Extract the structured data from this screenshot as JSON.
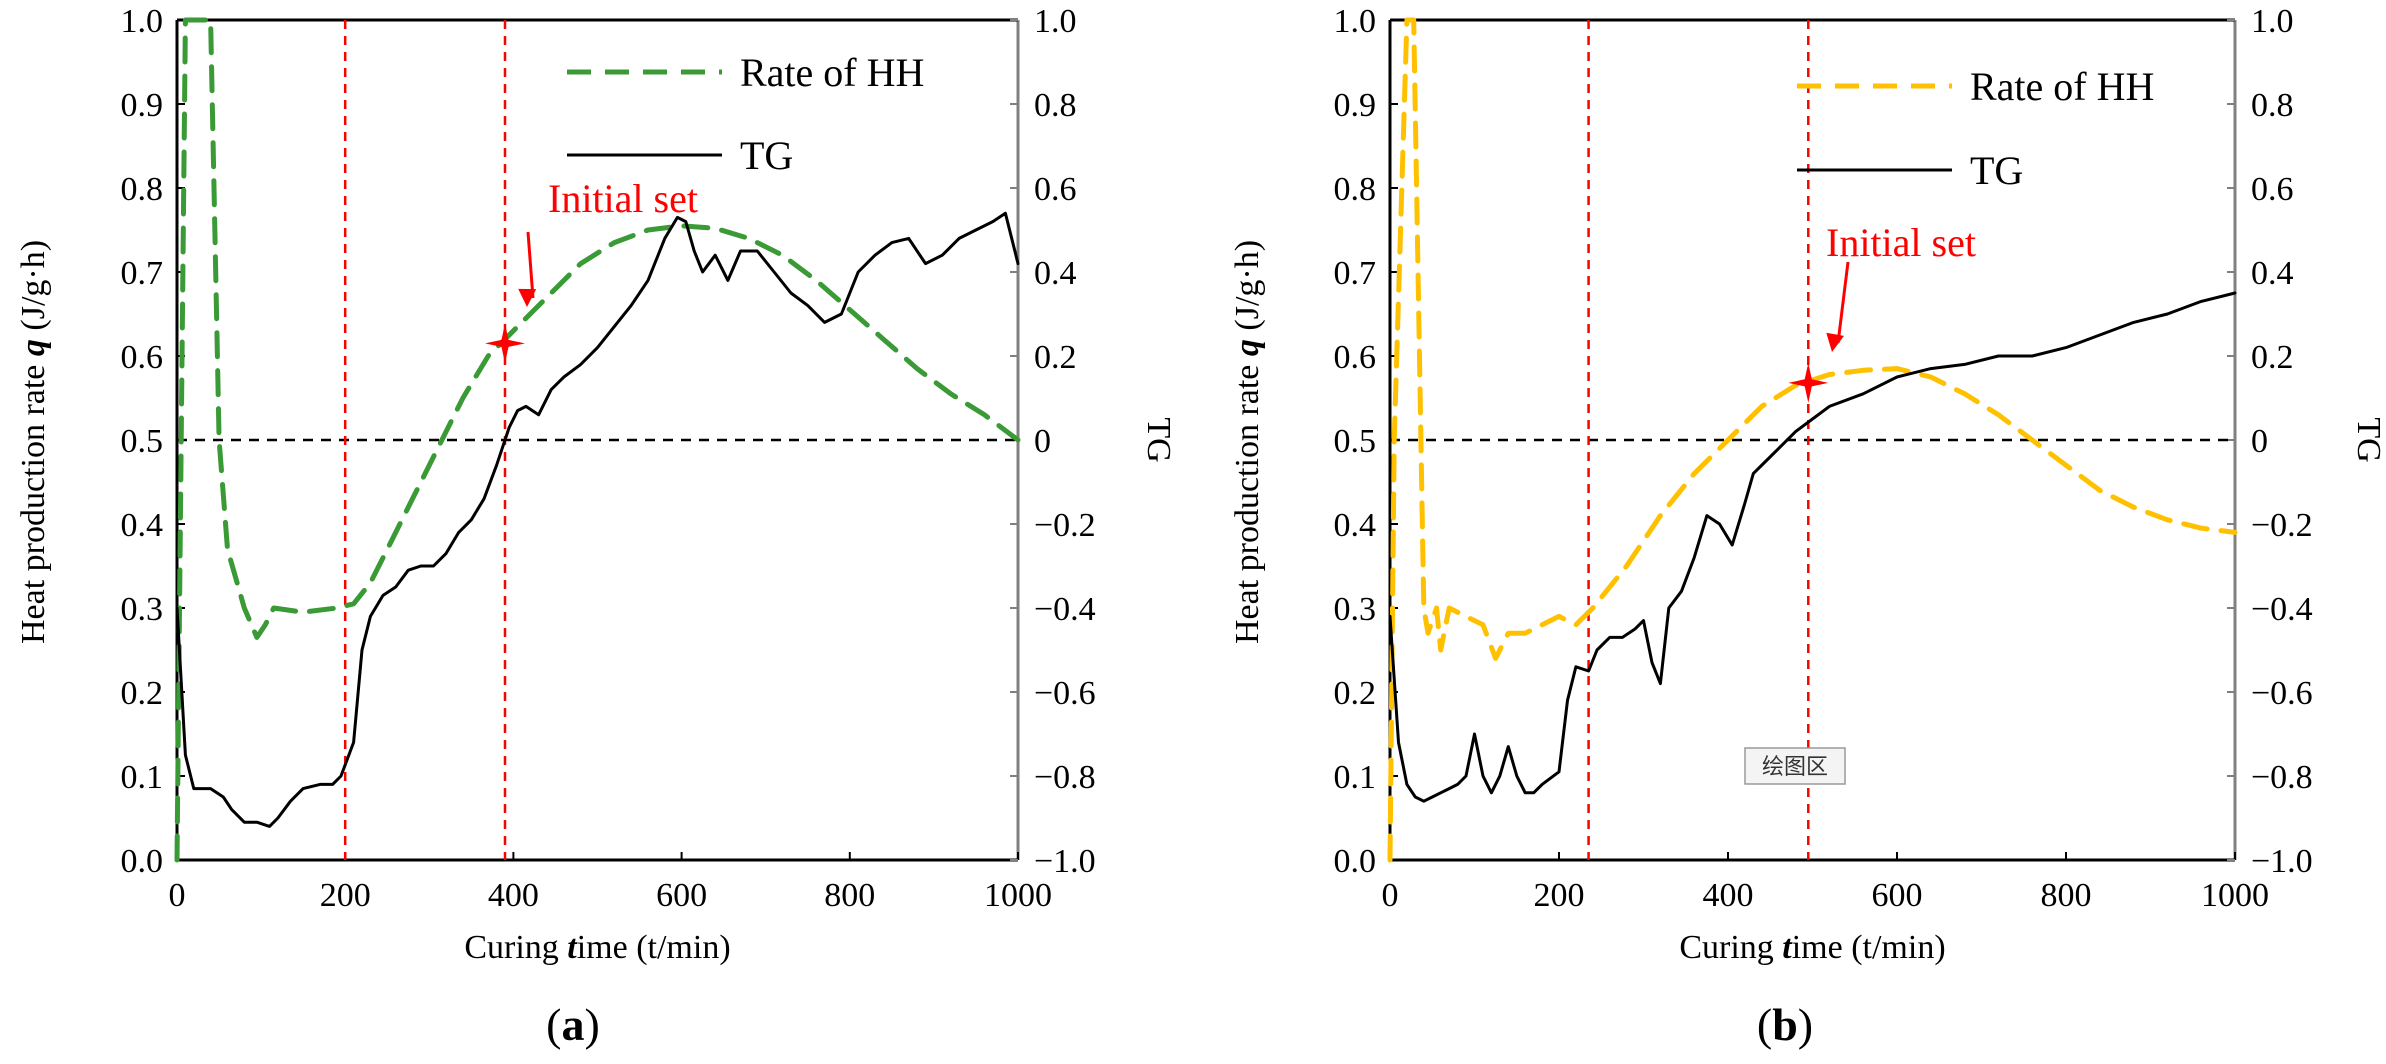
{
  "chart_data": [
    {
      "panel": "a",
      "type": "line",
      "xlabel": "Curing time (t/min)",
      "ylabel_left": "Heat production rate q (J/g·h)",
      "ylabel_right": "TG",
      "xlim": [
        0,
        1000
      ],
      "ylim_left": [
        0.0,
        1.0
      ],
      "ylim_right": [
        -1.0,
        1.0
      ],
      "x_ticks": [
        "0",
        "200",
        "400",
        "600",
        "800",
        "1000"
      ],
      "y_left_ticks": [
        "0.0",
        "0.1",
        "0.2",
        "0.3",
        "0.4",
        "0.5",
        "0.6",
        "0.7",
        "0.8",
        "0.9",
        "1.0"
      ],
      "y_right_ticks": [
        "−1.0",
        "−0.8",
        "−0.6",
        "−0.4",
        "−0.2",
        "0",
        "0.2",
        "0.4",
        "0.6",
        "0.8",
        "1.0"
      ],
      "grid": false,
      "legend_position": "top-right",
      "zero_line_right": 0,
      "vlines": [
        200,
        390
      ],
      "series": [
        {
          "name": "Rate of HH",
          "axis": "left",
          "style": "dashed",
          "color": "#3a9a35",
          "x": [
            0,
            5,
            10,
            40,
            50,
            60,
            80,
            95,
            105,
            115,
            150,
            190,
            210,
            230,
            250,
            280,
            300,
            340,
            370,
            400,
            440,
            480,
            520,
            560,
            600,
            640,
            680,
            720,
            760,
            800,
            840,
            880,
            920,
            960,
            1000
          ],
          "y": [
            0.0,
            0.5,
            1.0,
            1.0,
            0.5,
            0.37,
            0.3,
            0.265,
            0.28,
            0.3,
            0.295,
            0.3,
            0.305,
            0.33,
            0.37,
            0.43,
            0.47,
            0.55,
            0.6,
            0.63,
            0.67,
            0.71,
            0.735,
            0.75,
            0.755,
            0.752,
            0.74,
            0.72,
            0.69,
            0.655,
            0.62,
            0.585,
            0.555,
            0.53,
            0.5
          ]
        },
        {
          "name": "TG",
          "axis": "right",
          "style": "solid",
          "color": "#000000",
          "x": [
            0,
            10,
            20,
            40,
            55,
            65,
            80,
            95,
            110,
            120,
            135,
            150,
            170,
            185,
            195,
            210,
            220,
            230,
            245,
            260,
            275,
            290,
            305,
            320,
            335,
            350,
            365,
            380,
            395,
            405,
            415,
            430,
            445,
            460,
            480,
            500,
            520,
            540,
            560,
            580,
            595,
            605,
            615,
            625,
            640,
            655,
            670,
            690,
            710,
            730,
            750,
            770,
            790,
            810,
            830,
            850,
            870,
            890,
            910,
            930,
            950,
            970,
            985,
            1000
          ],
          "y": [
            -0.4,
            -0.75,
            -0.83,
            -0.83,
            -0.85,
            -0.88,
            -0.91,
            -0.91,
            -0.92,
            -0.9,
            -0.86,
            -0.83,
            -0.82,
            -0.82,
            -0.8,
            -0.72,
            -0.5,
            -0.42,
            -0.37,
            -0.35,
            -0.31,
            -0.3,
            -0.3,
            -0.27,
            -0.22,
            -0.19,
            -0.14,
            -0.06,
            0.03,
            0.07,
            0.08,
            0.06,
            0.12,
            0.15,
            0.18,
            0.22,
            0.27,
            0.32,
            0.38,
            0.48,
            0.53,
            0.52,
            0.45,
            0.4,
            0.44,
            0.38,
            0.45,
            0.45,
            0.4,
            0.35,
            0.32,
            0.28,
            0.3,
            0.4,
            0.44,
            0.47,
            0.48,
            0.42,
            0.44,
            0.48,
            0.5,
            0.52,
            0.54,
            0.42
          ]
        }
      ],
      "annotation": {
        "text": "Initial set",
        "marker_x": 390,
        "marker_y_left": 0.615,
        "color": "#ff0000"
      },
      "panel_label": "(a)"
    },
    {
      "panel": "b",
      "type": "line",
      "xlabel": "Curing time (t/min)",
      "ylabel_left": "Heat production rate q (J/g·h)",
      "ylabel_right": "TG",
      "xlim": [
        0,
        1000
      ],
      "ylim_left": [
        0.0,
        1.0
      ],
      "ylim_right": [
        -1.0,
        1.0
      ],
      "x_ticks": [
        "0",
        "200",
        "400",
        "600",
        "800",
        "1000"
      ],
      "y_left_ticks": [
        "0.0",
        "0.1",
        "0.2",
        "0.3",
        "0.4",
        "0.5",
        "0.6",
        "0.7",
        "0.8",
        "0.9",
        "1.0"
      ],
      "y_right_ticks": [
        "−1.0",
        "−0.8",
        "−0.6",
        "−0.4",
        "−0.2",
        "0",
        "0.2",
        "0.4",
        "0.6",
        "0.8",
        "1.0"
      ],
      "grid": false,
      "legend_position": "top-right",
      "zero_line_right": 0,
      "vlines": [
        235,
        495
      ],
      "series": [
        {
          "name": "Rate of HH",
          "axis": "left",
          "style": "dashed",
          "color": "#ffc000",
          "x": [
            0,
            5,
            20,
            28,
            40,
            45,
            55,
            60,
            70,
            90,
            110,
            125,
            140,
            160,
            180,
            200,
            220,
            240,
            280,
            320,
            360,
            400,
            440,
            480,
            520,
            560,
            600,
            640,
            680,
            720,
            760,
            800,
            840,
            880,
            920,
            960,
            1000
          ],
          "y": [
            0.0,
            0.5,
            1.0,
            1.0,
            0.3,
            0.27,
            0.3,
            0.25,
            0.3,
            0.29,
            0.28,
            0.24,
            0.27,
            0.27,
            0.28,
            0.29,
            0.28,
            0.3,
            0.35,
            0.41,
            0.46,
            0.5,
            0.54,
            0.565,
            0.578,
            0.583,
            0.585,
            0.575,
            0.555,
            0.53,
            0.5,
            0.47,
            0.44,
            0.42,
            0.405,
            0.395,
            0.39
          ]
        },
        {
          "name": "TG",
          "axis": "right",
          "style": "solid",
          "color": "#000000",
          "x": [
            0,
            10,
            20,
            30,
            40,
            50,
            60,
            70,
            80,
            90,
            100,
            110,
            120,
            130,
            140,
            150,
            160,
            170,
            180,
            200,
            210,
            220,
            235,
            245,
            260,
            275,
            290,
            300,
            310,
            320,
            330,
            345,
            360,
            375,
            390,
            405,
            420,
            430,
            445,
            460,
            480,
            500,
            520,
            560,
            600,
            640,
            680,
            720,
            760,
            800,
            840,
            880,
            920,
            960,
            1000
          ],
          "y": [
            -0.42,
            -0.72,
            -0.82,
            -0.85,
            -0.86,
            -0.85,
            -0.84,
            -0.83,
            -0.82,
            -0.8,
            -0.7,
            -0.8,
            -0.84,
            -0.8,
            -0.73,
            -0.8,
            -0.84,
            -0.84,
            -0.82,
            -0.79,
            -0.62,
            -0.54,
            -0.55,
            -0.5,
            -0.47,
            -0.47,
            -0.45,
            -0.43,
            -0.53,
            -0.58,
            -0.4,
            -0.36,
            -0.28,
            -0.18,
            -0.2,
            -0.25,
            -0.15,
            -0.08,
            -0.05,
            -0.02,
            0.02,
            0.05,
            0.08,
            0.11,
            0.15,
            0.17,
            0.18,
            0.2,
            0.2,
            0.22,
            0.25,
            0.28,
            0.3,
            0.33,
            0.35
          ]
        }
      ],
      "annotation": {
        "text": "Initial set",
        "marker_x": 495,
        "marker_y_left": 0.568,
        "color": "#ff0000"
      },
      "panel_label": "(b)",
      "watermark_badge": "绘图区"
    }
  ]
}
